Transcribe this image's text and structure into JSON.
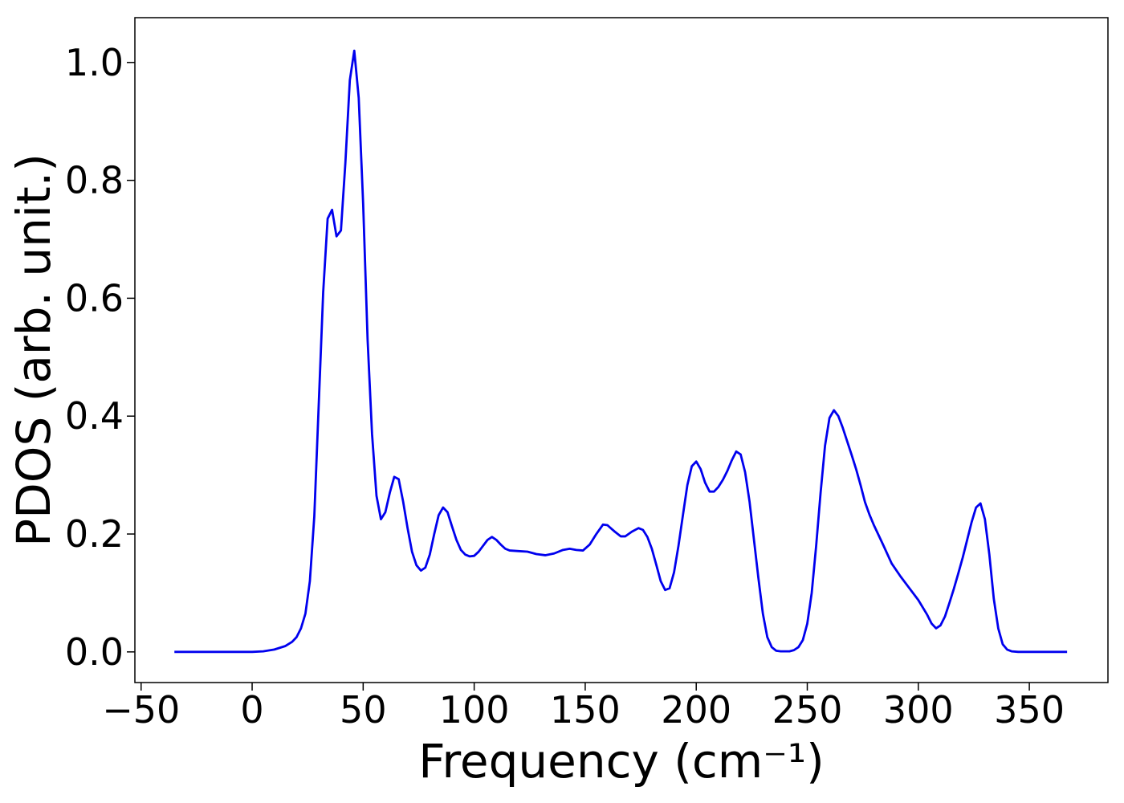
{
  "chart_data": {
    "type": "line",
    "x_label": "Frequency (cm⁻¹)",
    "y_label": "PDOS (arb. unit.)",
    "xlim": [
      -52.8,
      385.4
    ],
    "ylim": [
      -0.052,
      1.076
    ],
    "xticks": [
      {
        "value": -50,
        "label": "−50"
      },
      0,
      50,
      100,
      150,
      200,
      250,
      300,
      350
    ],
    "yticks": [
      {
        "value": 0,
        "label": "0.0"
      },
      0.2,
      0.4,
      0.6,
      0.8,
      {
        "value": 1,
        "label": "1.0"
      }
    ],
    "grid": false,
    "series": [
      {
        "color": "#0000ee",
        "x": [
          -35,
          -20,
          -10,
          0,
          5,
          10,
          15,
          18,
          20,
          22,
          24,
          26,
          28,
          30,
          32,
          34,
          36,
          38,
          40,
          42,
          44,
          46,
          48,
          50,
          52,
          54,
          56,
          58,
          60,
          62,
          64,
          66,
          68,
          70,
          72,
          74,
          76,
          78,
          80,
          82,
          84,
          86,
          88,
          90,
          92,
          94,
          96,
          98,
          100,
          102,
          104,
          106,
          108,
          110,
          112,
          114,
          116,
          120,
          124,
          128,
          132,
          136,
          140,
          143,
          146,
          149,
          152,
          155,
          158,
          160,
          163,
          166,
          168,
          171,
          174,
          176,
          178,
          180,
          182,
          184,
          186,
          188,
          190,
          192,
          194,
          196,
          198,
          200,
          202,
          204,
          206,
          208,
          210,
          212,
          214,
          216,
          218,
          220,
          222,
          224,
          226,
          228,
          230,
          232,
          234,
          236,
          238,
          242,
          244,
          246,
          248,
          250,
          252,
          254,
          256,
          258,
          260,
          262,
          264,
          266,
          268,
          270,
          272,
          274,
          276,
          278,
          280,
          284,
          288,
          292,
          296,
          300,
          304,
          306,
          308,
          310,
          312,
          314,
          316,
          318,
          320,
          322,
          324,
          326,
          328,
          330,
          332,
          334,
          336,
          338,
          340,
          342,
          345,
          367
        ],
        "values": [
          0,
          0,
          0,
          0,
          0.001,
          0.004,
          0.01,
          0.017,
          0.025,
          0.04,
          0.065,
          0.12,
          0.23,
          0.42,
          0.61,
          0.735,
          0.75,
          0.705,
          0.715,
          0.83,
          0.97,
          1.02,
          0.94,
          0.76,
          0.53,
          0.37,
          0.265,
          0.225,
          0.237,
          0.27,
          0.297,
          0.293,
          0.255,
          0.21,
          0.17,
          0.147,
          0.138,
          0.143,
          0.165,
          0.2,
          0.232,
          0.245,
          0.237,
          0.213,
          0.19,
          0.173,
          0.165,
          0.162,
          0.163,
          0.17,
          0.18,
          0.19,
          0.195,
          0.19,
          0.182,
          0.175,
          0.172,
          0.171,
          0.17,
          0.166,
          0.164,
          0.167,
          0.173,
          0.175,
          0.173,
          0.172,
          0.182,
          0.2,
          0.216,
          0.215,
          0.205,
          0.196,
          0.196,
          0.204,
          0.21,
          0.207,
          0.195,
          0.175,
          0.148,
          0.12,
          0.105,
          0.108,
          0.135,
          0.18,
          0.232,
          0.283,
          0.315,
          0.323,
          0.31,
          0.287,
          0.272,
          0.272,
          0.28,
          0.292,
          0.307,
          0.325,
          0.34,
          0.335,
          0.305,
          0.255,
          0.19,
          0.125,
          0.065,
          0.025,
          0.008,
          0.002,
          0.001,
          0.001,
          0.003,
          0.008,
          0.02,
          0.048,
          0.1,
          0.18,
          0.27,
          0.35,
          0.397,
          0.41,
          0.4,
          0.38,
          0.357,
          0.334,
          0.31,
          0.283,
          0.254,
          0.233,
          0.215,
          0.183,
          0.15,
          0.128,
          0.108,
          0.088,
          0.063,
          0.048,
          0.04,
          0.045,
          0.06,
          0.083,
          0.107,
          0.133,
          0.16,
          0.19,
          0.22,
          0.245,
          0.252,
          0.225,
          0.165,
          0.09,
          0.04,
          0.013,
          0.004,
          0.001,
          0,
          0
        ]
      }
    ]
  }
}
